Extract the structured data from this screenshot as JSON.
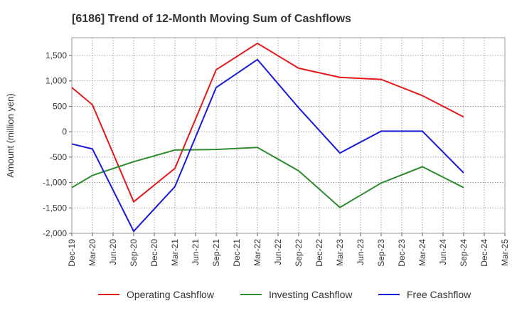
{
  "chart_data": {
    "type": "line",
    "title": "[6186]  Trend of 12-Month Moving Sum of Cashflows",
    "xlabel": "",
    "ylabel": "Amount (million yen)",
    "ylim": [
      -2000,
      1850
    ],
    "yticks": [
      -2000,
      -1500,
      -1000,
      -500,
      0,
      500,
      1000,
      1500
    ],
    "ytick_labels": [
      "-2,000",
      "-1,500",
      "-1,000",
      "-500",
      "0",
      "500",
      "1,000",
      "1,500"
    ],
    "categories": [
      "Dec-19",
      "Mar-20",
      "Jun-20",
      "Sep-20",
      "Dec-20",
      "Mar-21",
      "Jun-21",
      "Sep-21",
      "Dec-21",
      "Mar-22",
      "Jun-22",
      "Sep-22",
      "Dec-22",
      "Mar-23",
      "Jun-23",
      "Sep-23",
      "Dec-23",
      "Mar-24",
      "Jun-24",
      "Sep-24",
      "Dec-24",
      "Mar-25"
    ],
    "grid": true,
    "legend_position": "bottom",
    "series": [
      {
        "name": "Operating Cashflow",
        "color": "#e31a1c",
        "points": [
          [
            "Dec-19",
            870
          ],
          [
            "Mar-20",
            530
          ],
          [
            "Sep-20",
            -1380
          ],
          [
            "Mar-21",
            -720
          ],
          [
            "Sep-21",
            1220
          ],
          [
            "Mar-22",
            1740
          ],
          [
            "Sep-22",
            1250
          ],
          [
            "Mar-23",
            1070
          ],
          [
            "Sep-23",
            1030
          ],
          [
            "Mar-24",
            710
          ],
          [
            "Sep-24",
            290
          ]
        ]
      },
      {
        "name": "Investing Cashflow",
        "color": "#2e8b2e",
        "points": [
          [
            "Dec-19",
            -1100
          ],
          [
            "Mar-20",
            -860
          ],
          [
            "Sep-20",
            -590
          ],
          [
            "Mar-21",
            -360
          ],
          [
            "Sep-21",
            -350
          ],
          [
            "Mar-22",
            -310
          ],
          [
            "Sep-22",
            -770
          ],
          [
            "Mar-23",
            -1490
          ],
          [
            "Sep-23",
            -1010
          ],
          [
            "Mar-24",
            -690
          ],
          [
            "Sep-24",
            -1100
          ]
        ]
      },
      {
        "name": "Free Cashflow",
        "color": "#1a1adc",
        "points": [
          [
            "Dec-19",
            -240
          ],
          [
            "Mar-20",
            -340
          ],
          [
            "Sep-20",
            -1960
          ],
          [
            "Mar-21",
            -1080
          ],
          [
            "Sep-21",
            870
          ],
          [
            "Mar-22",
            1420
          ],
          [
            "Sep-22",
            470
          ],
          [
            "Mar-23",
            -420
          ],
          [
            "Sep-23",
            10
          ],
          [
            "Mar-24",
            10
          ],
          [
            "Sep-24",
            -810
          ]
        ]
      }
    ]
  }
}
